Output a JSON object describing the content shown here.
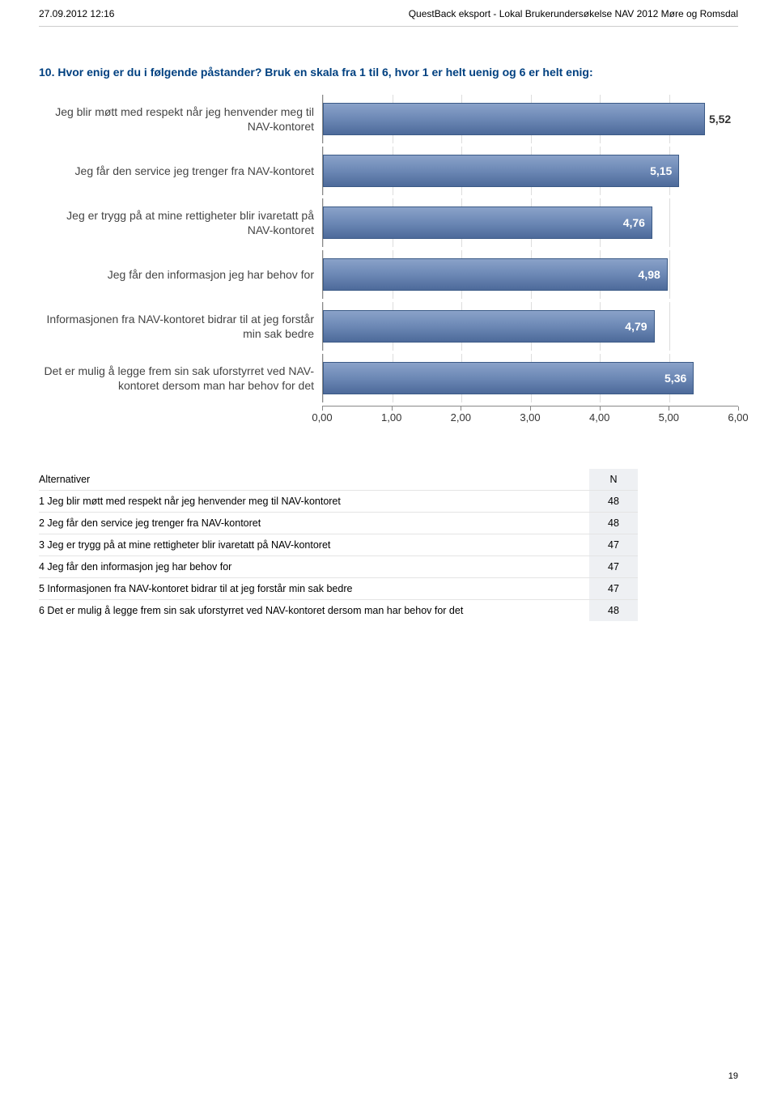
{
  "header": {
    "left": "27.09.2012 12:16",
    "right": "QuestBack eksport - Lokal Brukerundersøkelse NAV 2012 Møre og Romsdal"
  },
  "question": {
    "title": "10. Hvor enig er du i følgende påstander? Bruk en skala fra 1 til 6, hvor 1 er helt uenig og 6 er helt enig:"
  },
  "chart": {
    "type": "horizontal_bar",
    "xlim": [
      0,
      6
    ],
    "tick_step": 1.0,
    "tick_labels": [
      "0,00",
      "1,00",
      "2,00",
      "3,00",
      "4,00",
      "5,00",
      "6,00"
    ],
    "bar_color": "#6c88b5",
    "bar_border": "#3b5a86",
    "grid_color": "#dddddd",
    "label_color": "#444444",
    "bars": [
      {
        "label": "Jeg blir møtt med respekt når jeg henvender meg til NAV-kontoret",
        "value": 5.52,
        "display": "5,52"
      },
      {
        "label": "Jeg får den service jeg trenger fra NAV-kontoret",
        "value": 5.15,
        "display": "5,15"
      },
      {
        "label": "Jeg er trygg på at mine rettigheter blir ivaretatt på NAV-kontoret",
        "value": 4.76,
        "display": "4,76"
      },
      {
        "label": "Jeg får den informasjon jeg har behov for",
        "value": 4.98,
        "display": "4,98"
      },
      {
        "label": "Informasjonen fra NAV-kontoret bidrar til at jeg forstår min sak bedre",
        "value": 4.79,
        "display": "4,79"
      },
      {
        "label": "Det er mulig å legge frem sin sak uforstyrret ved NAV-kontoret dersom man har behov for det",
        "value": 5.36,
        "display": "5,36"
      }
    ]
  },
  "table": {
    "header_alt": "Alternativer",
    "header_n": "N",
    "rows": [
      {
        "label": "1 Jeg blir møtt med respekt når jeg henvender meg til NAV-kontoret",
        "n": "48"
      },
      {
        "label": "2 Jeg får den service jeg trenger fra NAV-kontoret",
        "n": "48"
      },
      {
        "label": "3 Jeg er trygg på at mine rettigheter blir ivaretatt på NAV-kontoret",
        "n": "47"
      },
      {
        "label": "4 Jeg får den informasjon jeg har behov for",
        "n": "47"
      },
      {
        "label": "5 Informasjonen fra NAV-kontoret bidrar til at jeg forstår min sak bedre",
        "n": "47"
      },
      {
        "label": "6 Det er mulig å legge frem sin sak uforstyrret ved NAV-kontoret dersom man har behov for det",
        "n": "48"
      }
    ]
  },
  "page_number": "19"
}
